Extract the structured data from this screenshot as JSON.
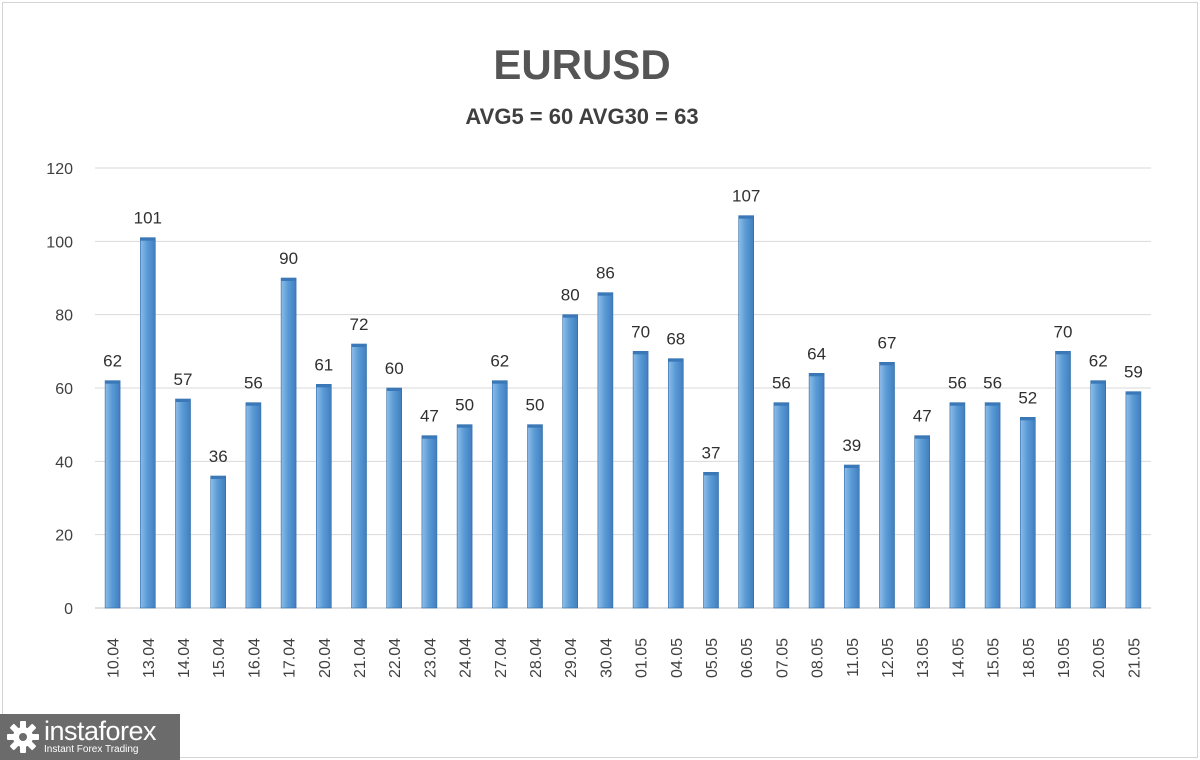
{
  "chart_data": {
    "type": "bar",
    "title": "EURUSD",
    "subtitle": "AVG5 = 60 AVG30 = 63",
    "categories": [
      "10.04",
      "13.04",
      "14.04",
      "15.04",
      "16.04",
      "17.04",
      "20.04",
      "21.04",
      "22.04",
      "23.04",
      "24.04",
      "27.04",
      "28.04",
      "29.04",
      "30.04",
      "01.05",
      "04.05",
      "05.05",
      "06.05",
      "07.05",
      "08.05",
      "11.05",
      "12.05",
      "13.05",
      "14.05",
      "15.05",
      "18.05",
      "19.05",
      "20.05",
      "21.05"
    ],
    "values": [
      62,
      101,
      57,
      36,
      56,
      90,
      61,
      72,
      60,
      47,
      50,
      62,
      50,
      80,
      86,
      70,
      68,
      37,
      107,
      56,
      64,
      39,
      67,
      47,
      56,
      56,
      52,
      70,
      62,
      59
    ],
    "ylim": [
      0,
      120
    ],
    "yticks": [
      0,
      20,
      40,
      60,
      80,
      100,
      120
    ],
    "grid": true,
    "xlabel": "",
    "ylabel": "",
    "bar_color": "#5b9bd5",
    "bar_top_color": "#3a78b8"
  },
  "logo": {
    "brand": "instaforex",
    "tagline": "Instant Forex Trading",
    "icon": "gear-icon"
  }
}
